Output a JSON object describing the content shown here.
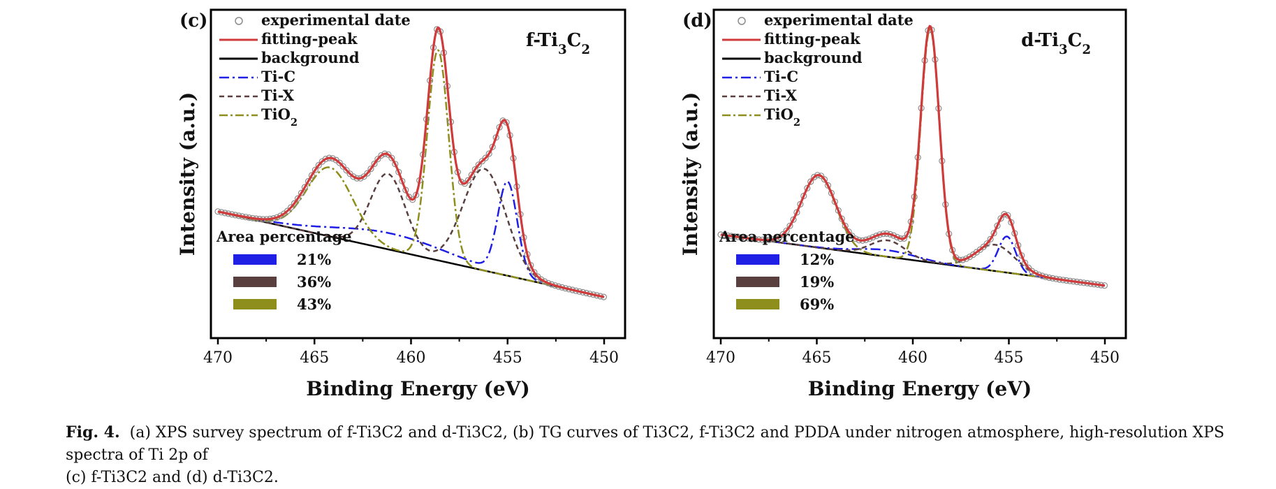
{
  "caption": {
    "label": "Fig. 4.",
    "line1": "(a) XPS survey spectrum of f-Ti3C2 and d-Ti3C2, (b) TG curves of Ti3C2, f-Ti3C2 and PDDA under nitrogen atmosphere, high-resolution XPS spectra of Ti 2p of",
    "line2": "(c) f-Ti3C2 and (d) d-Ti3C2."
  },
  "colors": {
    "experimental": "#8c8c8c",
    "fitting": "#d03a3a",
    "background": "#000000",
    "ti_c": "#1f1fe6",
    "ti_x": "#5a3f3f",
    "tio2": "#8e8e1c"
  },
  "chart_data": [
    {
      "type": "line",
      "panel": "(c)",
      "sample": "f-Ti3C2",
      "xlabel": "Binding Energy (eV)",
      "ylabel": "Intensity (a.u.)",
      "xlim": [
        470,
        450
      ],
      "x_reversed": true,
      "ylim": [
        0,
        1
      ],
      "xticks": [
        470,
        465,
        460,
        455,
        450
      ],
      "y_ticks_shown": false,
      "grid": false,
      "legend_position": "top-left",
      "legend": [
        {
          "label": "experimental date",
          "style": "open-circle"
        },
        {
          "label": "fitting-peak",
          "style": "solid"
        },
        {
          "label": "background",
          "style": "solid"
        },
        {
          "label": "Ti-C",
          "style": "dash-dot"
        },
        {
          "label": "Ti-X",
          "style": "dashed"
        },
        {
          "label": "TiO2",
          "style": "dash-dot"
        }
      ],
      "area_title": "Area percentage",
      "area_percentages": [
        {
          "component": "Ti-C",
          "value": "21%"
        },
        {
          "component": "Ti-X",
          "value": "36%"
        },
        {
          "component": "TiO2",
          "value": "43%"
        }
      ],
      "background_line": {
        "x": [
          470,
          450
        ],
        "y": [
          0.385,
          0.125
        ]
      },
      "components": [
        {
          "name": "Ti-C",
          "peaks": [
            {
              "center": 455.0,
              "height": 0.28,
              "width": 0.5
            },
            {
              "center": 461.0,
              "height": 0.05,
              "width": 3.0
            }
          ]
        },
        {
          "name": "Ti-X",
          "peaks": [
            {
              "center": 456.2,
              "height": 0.31,
              "width": 1.1
            },
            {
              "center": 461.2,
              "height": 0.23,
              "width": 0.9
            }
          ]
        },
        {
          "name": "TiO2",
          "peaks": [
            {
              "center": 458.6,
              "height": 0.64,
              "width": 0.55
            },
            {
              "center": 464.2,
              "height": 0.21,
              "width": 1.2
            }
          ]
        }
      ]
    },
    {
      "type": "line",
      "panel": "(d)",
      "sample": "d-Ti3C2",
      "xlabel": "Binding Energy (eV)",
      "ylabel": "Intensity (a.u.)",
      "xlim": [
        470,
        450
      ],
      "x_reversed": true,
      "ylim": [
        0,
        1
      ],
      "xticks": [
        470,
        465,
        460,
        455,
        450
      ],
      "y_ticks_shown": false,
      "grid": false,
      "legend_position": "top-left",
      "legend": [
        {
          "label": "experimental date",
          "style": "open-circle"
        },
        {
          "label": "fitting-peak",
          "style": "solid"
        },
        {
          "label": "background",
          "style": "solid"
        },
        {
          "label": "Ti-C",
          "style": "dash-dot"
        },
        {
          "label": "Ti-X",
          "style": "dashed"
        },
        {
          "label": "TiO2",
          "style": "dash-dot"
        }
      ],
      "area_title": "Area percentage",
      "area_percentages": [
        {
          "component": "Ti-C",
          "value": "12%"
        },
        {
          "component": "Ti-X",
          "value": "19%"
        },
        {
          "component": "TiO2",
          "value": "69%"
        }
      ],
      "background_line": {
        "x": [
          470,
          450
        ],
        "y": [
          0.315,
          0.16
        ]
      },
      "components": [
        {
          "name": "Ti-C",
          "peaks": [
            {
              "center": 455.1,
              "height": 0.11,
              "width": 0.45
            },
            {
              "center": 461.3,
              "height": 0.02,
              "width": 1.5
            }
          ]
        },
        {
          "name": "Ti-X",
          "peaks": [
            {
              "center": 455.7,
              "height": 0.08,
              "width": 1.0
            },
            {
              "center": 461.3,
              "height": 0.05,
              "width": 0.9
            }
          ]
        },
        {
          "name": "TiO2",
          "peaks": [
            {
              "center": 459.1,
              "height": 0.71,
              "width": 0.48
            },
            {
              "center": 464.9,
              "height": 0.22,
              "width": 0.9
            }
          ]
        }
      ]
    }
  ]
}
